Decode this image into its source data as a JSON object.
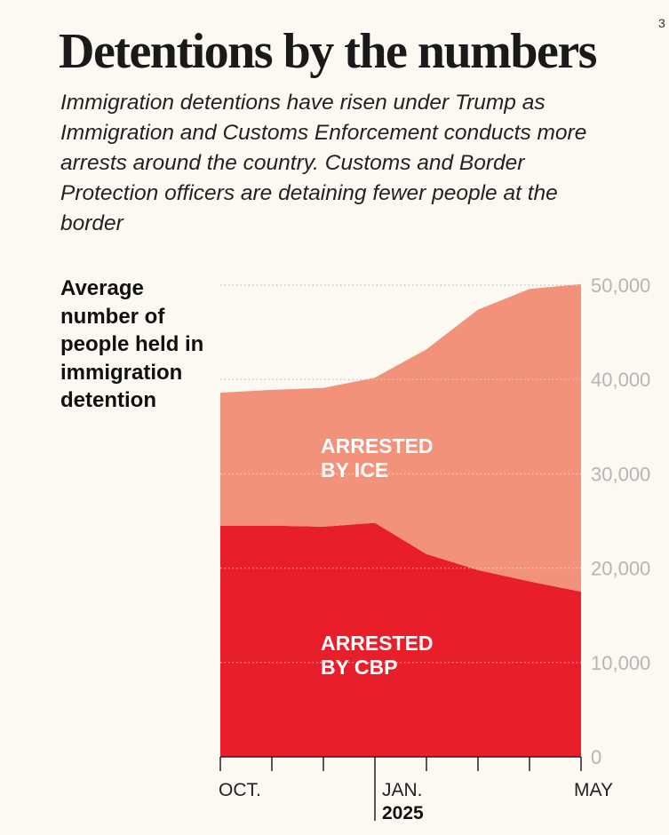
{
  "title": "Detentions by the numbers",
  "subtitle": "Immigration detentions have risen under Trump as Immigration and Customs Enforcement conducts more arrests around the country. Customs and Border Protection officers are detaining fewer people at the border",
  "corner_mark": "3",
  "chart_data": {
    "type": "area",
    "stacked": true,
    "ylabel": "Average number of people held in immigration detention",
    "ylim": [
      0,
      50000
    ],
    "y_ticks": [
      "0",
      "10,000",
      "20,000",
      "30,000",
      "40,000",
      "50,000"
    ],
    "y_tick_values": [
      0,
      10000,
      20000,
      30000,
      40000,
      50000
    ],
    "x_labels": [
      {
        "index": 0,
        "text": "OCT."
      },
      {
        "index": 3,
        "text": "JAN.",
        "year": "2025"
      },
      {
        "index": 7,
        "text": "MAY"
      }
    ],
    "x_count": 8,
    "series": [
      {
        "name": "ARRESTED BY CBP",
        "label_lines": [
          "ARRESTED",
          "BY CBP"
        ],
        "color": "#e81f2b",
        "values": [
          24500,
          24500,
          24400,
          24800,
          21500,
          19800,
          18600,
          17500
        ]
      },
      {
        "name": "ARRESTED BY ICE",
        "label_lines": [
          "ARRESTED",
          "BY ICE"
        ],
        "color": "#f2927a",
        "values": [
          14100,
          14400,
          14700,
          15400,
          21700,
          27600,
          31000,
          32600
        ]
      }
    ],
    "grid": "dotted",
    "y_axis_position": "right"
  }
}
